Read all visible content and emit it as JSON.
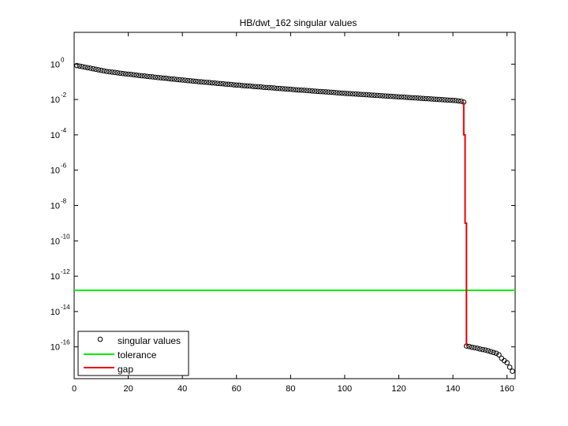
{
  "chart_data": {
    "type": "scatter",
    "title": "HB/dwt_162 singular values",
    "xlabel": "",
    "ylabel": "",
    "xlim": [
      0,
      163
    ],
    "ylog": true,
    "ylim_exp": [
      -17.8,
      1.8
    ],
    "x_ticks": [
      "0",
      "20",
      "40",
      "60",
      "80",
      "100",
      "120",
      "140",
      "160"
    ],
    "y_tick_base": "10",
    "y_tick_exponents": [
      "0",
      "-2",
      "-4",
      "-6",
      "-8",
      "-10",
      "-12",
      "-14",
      "-16"
    ],
    "grid": false,
    "legend_position": "bottom-left",
    "series": [
      {
        "name": "singular values",
        "style": "markers",
        "color": "#000000",
        "x_start": 1,
        "log10_values": [
          -0.08,
          -0.11,
          -0.14,
          -0.17,
          -0.2,
          -0.23,
          -0.26,
          -0.29,
          -0.32,
          -0.35,
          -0.38,
          -0.41,
          -0.43,
          -0.45,
          -0.47,
          -0.49,
          -0.51,
          -0.53,
          -0.55,
          -0.57,
          -0.58,
          -0.6,
          -0.62,
          -0.64,
          -0.66,
          -0.67,
          -0.69,
          -0.71,
          -0.72,
          -0.74,
          -0.76,
          -0.77,
          -0.79,
          -0.8,
          -0.82,
          -0.84,
          -0.85,
          -0.87,
          -0.88,
          -0.9,
          -0.91,
          -0.93,
          -0.94,
          -0.96,
          -0.97,
          -0.99,
          -1.0,
          -1.02,
          -1.03,
          -1.04,
          -1.06,
          -1.07,
          -1.09,
          -1.1,
          -1.11,
          -1.13,
          -1.14,
          -1.15,
          -1.17,
          -1.18,
          -1.19,
          -1.21,
          -1.22,
          -1.23,
          -1.24,
          -1.26,
          -1.27,
          -1.28,
          -1.29,
          -1.31,
          -1.32,
          -1.33,
          -1.34,
          -1.35,
          -1.37,
          -1.38,
          -1.39,
          -1.4,
          -1.41,
          -1.42,
          -1.44,
          -1.45,
          -1.46,
          -1.47,
          -1.48,
          -1.49,
          -1.5,
          -1.52,
          -1.53,
          -1.54,
          -1.55,
          -1.56,
          -1.57,
          -1.58,
          -1.59,
          -1.6,
          -1.62,
          -1.63,
          -1.64,
          -1.65,
          -1.66,
          -1.67,
          -1.68,
          -1.69,
          -1.7,
          -1.71,
          -1.72,
          -1.73,
          -1.74,
          -1.75,
          -1.76,
          -1.77,
          -1.78,
          -1.79,
          -1.8,
          -1.81,
          -1.82,
          -1.83,
          -1.84,
          -1.85,
          -1.86,
          -1.87,
          -1.88,
          -1.89,
          -1.9,
          -1.91,
          -1.92,
          -1.93,
          -1.94,
          -1.95,
          -1.96,
          -1.97,
          -1.98,
          -1.99,
          -2.0,
          -2.01,
          -2.02,
          -2.03,
          -2.04,
          -2.05,
          -2.06,
          -2.08,
          -2.1,
          -2.15,
          -15.95,
          -15.98,
          -16.02,
          -16.05,
          -16.08,
          -16.12,
          -16.15,
          -16.18,
          -16.22,
          -16.27,
          -16.32,
          -16.36,
          -16.45,
          -16.65,
          -16.78,
          -16.9,
          -17.15,
          -17.38
        ]
      },
      {
        "name": "tolerance",
        "style": "line",
        "color": "#00ee00",
        "log10_value": -12.8
      },
      {
        "name": "gap",
        "style": "line",
        "color": "#ee0000",
        "x": [
          144,
          144,
          144.5,
          144.5,
          145,
          145
        ],
        "log10_values": [
          -2.15,
          -4.0,
          -4.0,
          -9.0,
          -9.0,
          -15.95
        ]
      }
    ]
  }
}
